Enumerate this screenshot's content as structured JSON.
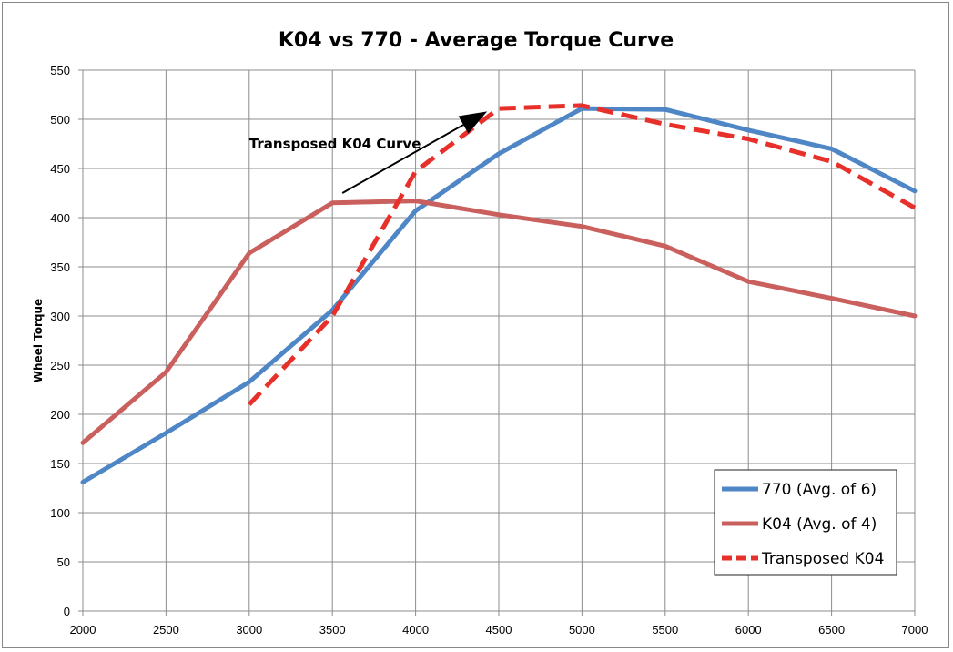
{
  "chart_data": {
    "type": "line",
    "title": "K04 vs 770 - Average Torque Curve",
    "xlabel": "",
    "ylabel": "Wheel Torque",
    "xlim": [
      2000,
      7000
    ],
    "ylim": [
      0,
      550
    ],
    "x_ticks": [
      2000,
      2500,
      3000,
      3500,
      4000,
      4500,
      5000,
      5500,
      6000,
      6500,
      7000
    ],
    "y_ticks": [
      0,
      50,
      100,
      150,
      200,
      250,
      300,
      350,
      400,
      450,
      500,
      550
    ],
    "grid": true,
    "legend_position": "bottom-right",
    "series": [
      {
        "name": "770 (Avg. of 6)",
        "color": "#4f86c6",
        "style": "solid",
        "x": [
          2000,
          2500,
          3000,
          3500,
          4000,
          4500,
          5000,
          5500,
          6000,
          6500,
          7000
        ],
        "y": [
          131,
          181,
          233,
          306,
          407,
          465,
          511,
          510,
          489,
          470,
          427
        ]
      },
      {
        "name": "K04 (Avg. of 4)",
        "color": "#c9605d",
        "style": "solid",
        "x": [
          2000,
          2500,
          3000,
          3500,
          4000,
          4500,
          5000,
          5500,
          6000,
          6500,
          7000
        ],
        "y": [
          171,
          243,
          364,
          415,
          417,
          403,
          391,
          371,
          335,
          318,
          300
        ]
      },
      {
        "name": "Transposed K04",
        "color": "#e8302a",
        "style": "dashed",
        "x": [
          3000,
          3500,
          4000,
          4500,
          5000,
          5500,
          6000,
          6500,
          7000
        ],
        "y": [
          210,
          300,
          447,
          511,
          514,
          495,
          480,
          457,
          410
        ]
      }
    ],
    "annotations": [
      {
        "text": "Transposed K04 Curve",
        "arrow": true,
        "arrow_from": [
          3560,
          425
        ],
        "arrow_to": [
          4430,
          508
        ],
        "text_anchor": [
          3000,
          475
        ]
      }
    ]
  }
}
